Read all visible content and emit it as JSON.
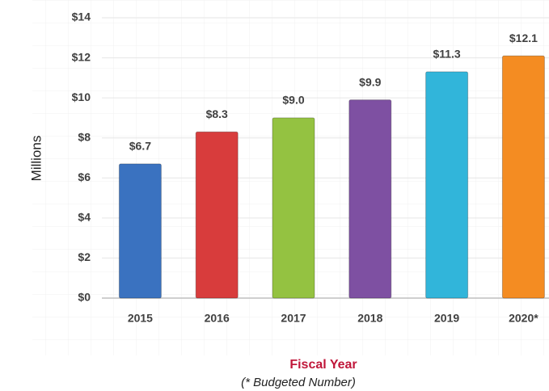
{
  "chart_data": {
    "type": "bar",
    "categories": [
      "2015",
      "2016",
      "2017",
      "2018",
      "2019",
      "2020*"
    ],
    "values": [
      6.7,
      8.3,
      9.0,
      9.9,
      11.3,
      12.1
    ],
    "value_labels": [
      "$6.7",
      "$8.3",
      "$9.0",
      "$9.9",
      "$11.3",
      "$12.1"
    ],
    "colors": [
      "#3a72c0",
      "#d83c3c",
      "#94c241",
      "#7e50a2",
      "#31b5da",
      "#f48c22"
    ],
    "ylim": [
      0,
      14
    ],
    "yticks": [
      {
        "value": 0,
        "label": "$0"
      },
      {
        "value": 2,
        "label": "$2"
      },
      {
        "value": 4,
        "label": "$4"
      },
      {
        "value": 6,
        "label": "$6"
      },
      {
        "value": 8,
        "label": "$8"
      },
      {
        "value": 10,
        "label": "$10"
      },
      {
        "value": 12,
        "label": "$12"
      },
      {
        "value": 14,
        "label": "$14"
      }
    ],
    "ylabel": "Millions",
    "xlabel": "Fiscal Year",
    "xlabel_note": "(* Budgeted Number)",
    "grid": true
  }
}
